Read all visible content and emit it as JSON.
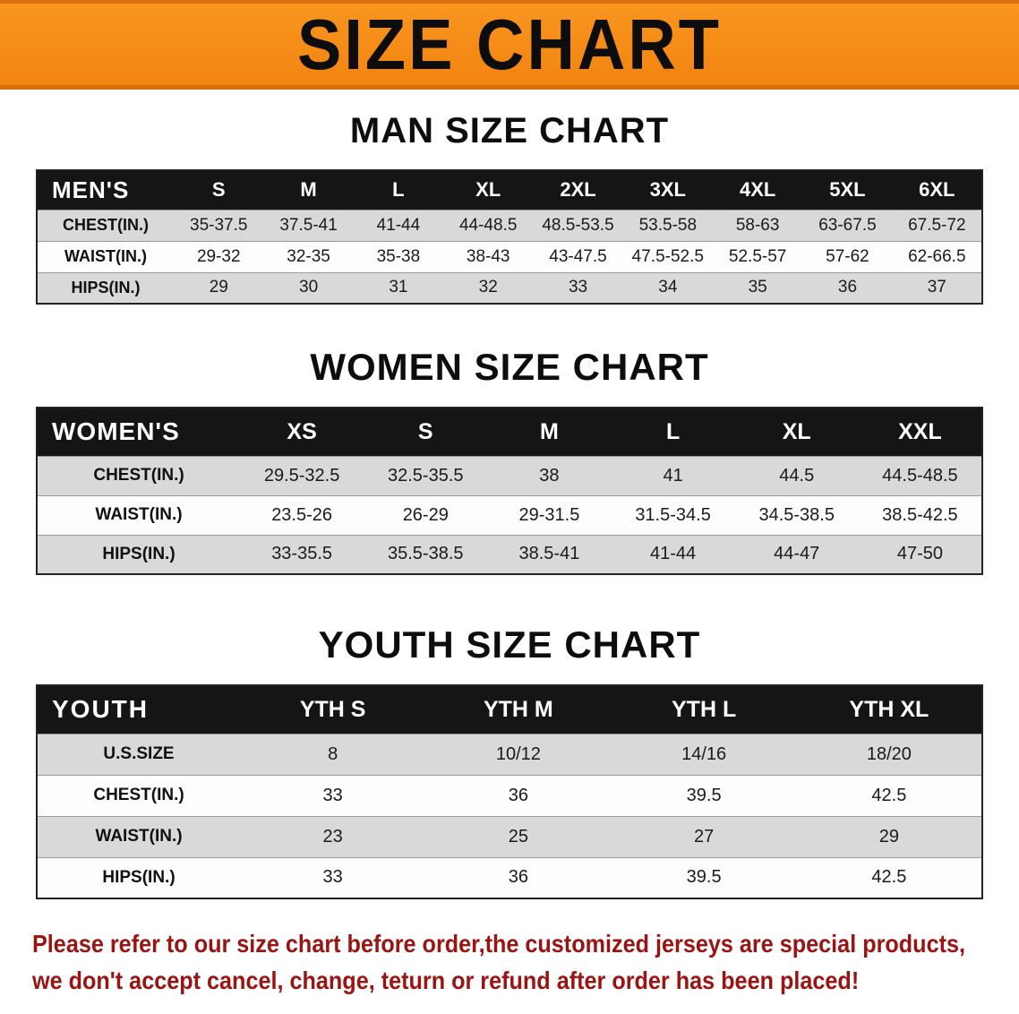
{
  "banner": {
    "title": "SIZE CHART"
  },
  "colors": {
    "banner_orange": "#F68B1F",
    "header_black": "#151515",
    "row_shade_gray": "#D9D9D9",
    "footer_red": "#9B1412"
  },
  "men": {
    "title": "MAN SIZE CHART",
    "header": [
      "MEN'S",
      "S",
      "M",
      "L",
      "XL",
      "2XL",
      "3XL",
      "4XL",
      "5XL",
      "6XL"
    ],
    "rows": [
      {
        "label": "CHEST(IN.)",
        "values": [
          "35-37.5",
          "37.5-41",
          "41-44",
          "44-48.5",
          "48.5-53.5",
          "53.5-58",
          "58-63",
          "63-67.5",
          "67.5-72"
        ]
      },
      {
        "label": "WAIST(IN.)",
        "values": [
          "29-32",
          "32-35",
          "35-38",
          "38-43",
          "43-47.5",
          "47.5-52.5",
          "52.5-57",
          "57-62",
          "62-66.5"
        ]
      },
      {
        "label": "HIPS(IN.)",
        "values": [
          "29",
          "30",
          "31",
          "32",
          "33",
          "34",
          "35",
          "36",
          "37"
        ]
      }
    ]
  },
  "women": {
    "title": "WOMEN SIZE CHART",
    "header": [
      "WOMEN'S",
      "XS",
      "S",
      "M",
      "L",
      "XL",
      "XXL"
    ],
    "rows": [
      {
        "label": "CHEST(IN.)",
        "values": [
          "29.5-32.5",
          "32.5-35.5",
          "38",
          "41",
          "44.5",
          "44.5-48.5"
        ]
      },
      {
        "label": "WAIST(IN.)",
        "values": [
          "23.5-26",
          "26-29",
          "29-31.5",
          "31.5-34.5",
          "34.5-38.5",
          "38.5-42.5"
        ]
      },
      {
        "label": "HIPS(IN.)",
        "values": [
          "33-35.5",
          "35.5-38.5",
          "38.5-41",
          "41-44",
          "44-47",
          "47-50"
        ]
      }
    ]
  },
  "youth": {
    "title": "YOUTH SIZE CHART",
    "header": [
      "YOUTH",
      "YTH S",
      "YTH M",
      "YTH L",
      "YTH XL"
    ],
    "rows": [
      {
        "label": "U.S.SIZE",
        "values": [
          "8",
          "10/12",
          "14/16",
          "18/20"
        ]
      },
      {
        "label": "CHEST(IN.)",
        "values": [
          "33",
          "36",
          "39.5",
          "42.5"
        ]
      },
      {
        "label": "WAIST(IN.)",
        "values": [
          "23",
          "25",
          "27",
          "29"
        ]
      },
      {
        "label": "HIPS(IN.)",
        "values": [
          "33",
          "36",
          "39.5",
          "42.5"
        ]
      }
    ]
  },
  "footer": {
    "line1": "Please refer to our size chart before order,the customized jerseys are special products,",
    "line2": "we don't accept cancel, change, teturn or refund after order has been placed!"
  }
}
